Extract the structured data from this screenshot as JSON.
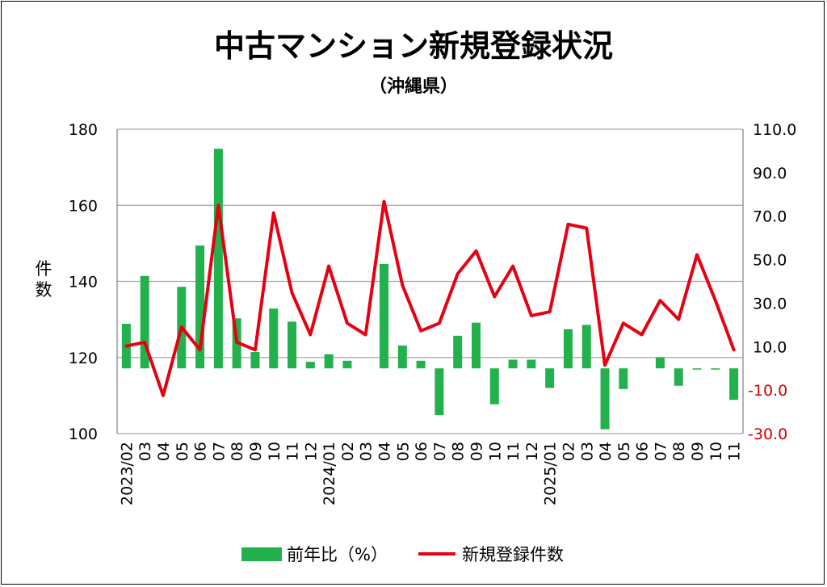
{
  "chart_data": {
    "type": "bar+line",
    "title": "中古マンション新規登録状況",
    "subtitle": "（沖縄県）",
    "ylabel_left": "件数",
    "categories": [
      "2023/02",
      "03",
      "04",
      "05",
      "06",
      "07",
      "08",
      "09",
      "10",
      "11",
      "12",
      "2024/01",
      "02",
      "03",
      "04",
      "05",
      "06",
      "07",
      "08",
      "09",
      "10",
      "11",
      "12",
      "2025/01",
      "02",
      "03",
      "04",
      "05",
      "06",
      "07",
      "08",
      "09",
      "10",
      "11"
    ],
    "ylim_left": [
      100,
      180
    ],
    "yticks_left": [
      "180",
      "160",
      "140",
      "120",
      "100"
    ],
    "ylim_right": [
      -30,
      110
    ],
    "yticks_right_positive": [
      "110.0",
      "90.0",
      "70.0",
      "50.0",
      "30.0",
      "10.0"
    ],
    "yticks_right_negative": [
      "-10.0",
      "-30.0"
    ],
    "grid": "horizontal",
    "legend_position": "bottom",
    "colors": {
      "bar": "#22b14c",
      "line": "#e60012",
      "negative_tick": "#d40000",
      "grid": "#a6a6a6"
    },
    "series": [
      {
        "name": "前年比（%）",
        "type": "bar",
        "axis": "right",
        "values": [
          20.5,
          42.5,
          0,
          37.5,
          56.5,
          101,
          23,
          7.5,
          27.5,
          21.5,
          3,
          6.5,
          3.5,
          0,
          48,
          10.5,
          3.5,
          -21.5,
          15,
          21,
          -16.5,
          4,
          4,
          -9,
          18,
          20,
          -28,
          -9.5,
          0,
          5,
          -8,
          -0.5,
          -0.5,
          -14.5
        ]
      },
      {
        "name": "新規登録件数",
        "type": "line",
        "axis": "left",
        "values": [
          123,
          124,
          110,
          128,
          122,
          160,
          124,
          122,
          158,
          137,
          126,
          144,
          129,
          126,
          161,
          139,
          127,
          129,
          142,
          148,
          136,
          144,
          131,
          132,
          155,
          154,
          118,
          129,
          126,
          135,
          130,
          147,
          135,
          122
        ]
      }
    ]
  }
}
